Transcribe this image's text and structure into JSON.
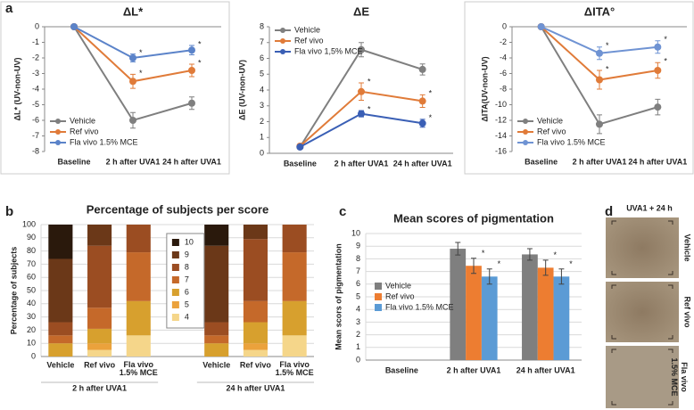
{
  "panel_labels": [
    "a",
    "b",
    "c",
    "d"
  ],
  "chart_data": [
    {
      "type": "line",
      "title": "ΔL*",
      "y_label": "ΔL* (UV-non-UV)",
      "categories": [
        "Baseline",
        "2 h after UVA1",
        "24 h after UVA1"
      ],
      "ylim": [
        -8,
        0
      ],
      "yticks": [
        0,
        -1,
        -2,
        -3,
        -4,
        -5,
        -6,
        -7,
        -8
      ],
      "legend": "lower left",
      "series": [
        {
          "name": "Vehicle",
          "color": "#7f7f7f",
          "values": [
            0,
            -6.0,
            -4.9
          ],
          "errors": [
            0,
            0.5,
            0.4
          ],
          "significance": [
            null,
            null,
            null
          ]
        },
        {
          "name": "Ref vivo",
          "color": "#e07b39",
          "values": [
            0,
            -3.5,
            -2.8
          ],
          "errors": [
            0,
            0.45,
            0.4
          ],
          "significance": [
            null,
            "*",
            "*"
          ]
        },
        {
          "name": "Fla vivo 1.5% MCE",
          "color": "#5b83c9",
          "values": [
            0,
            -2.0,
            -1.5
          ],
          "errors": [
            0,
            0.25,
            0.3
          ],
          "significance": [
            null,
            "*",
            "*"
          ]
        }
      ]
    },
    {
      "type": "line",
      "title": "ΔE",
      "y_label": "ΔE (UV-non-UV)",
      "categories": [
        "Baseline",
        "2 h after UVA1",
        "24 h after UVA1"
      ],
      "ylim": [
        0,
        8
      ],
      "yticks": [
        0,
        1,
        2,
        3,
        4,
        5,
        6,
        7,
        8
      ],
      "legend": "upper left",
      "series": [
        {
          "name": "Vehicle",
          "color": "#7f7f7f",
          "values": [
            0.4,
            6.55,
            5.3
          ],
          "errors": [
            0,
            0.45,
            0.35
          ],
          "significance": [
            null,
            null,
            null
          ]
        },
        {
          "name": "Ref vivo",
          "color": "#e07b39",
          "values": [
            0.45,
            3.9,
            3.3
          ],
          "errors": [
            0.1,
            0.55,
            0.4
          ],
          "significance": [
            null,
            "*",
            "*"
          ]
        },
        {
          "name": "Fla vivo 1,5% MCE",
          "color": "#3a5fb5",
          "values": [
            0.4,
            2.5,
            1.9
          ],
          "errors": [
            0.05,
            0.2,
            0.25
          ],
          "significance": [
            null,
            "*",
            "*"
          ]
        }
      ]
    },
    {
      "type": "line",
      "title": "ΔITA°",
      "y_label": "ΔITA(UV-non-UV)",
      "categories": [
        "Baseline",
        "2 h after UVA1",
        "24 h after UVA1"
      ],
      "ylim": [
        -16,
        0
      ],
      "yticks": [
        0,
        -2,
        -4,
        -6,
        -8,
        -10,
        -12,
        -14,
        -16
      ],
      "legend": "lower left",
      "series": [
        {
          "name": "Vehicle",
          "color": "#7f7f7f",
          "values": [
            0,
            -12.5,
            -10.3
          ],
          "errors": [
            0,
            1.2,
            1.0
          ],
          "significance": [
            null,
            null,
            null
          ]
        },
        {
          "name": "Ref vivo",
          "color": "#e07b39",
          "values": [
            0,
            -6.8,
            -5.6
          ],
          "errors": [
            0,
            1.2,
            1.0
          ],
          "significance": [
            null,
            "*",
            "*"
          ]
        },
        {
          "name": "Fla vivo 1.5% MCE",
          "color": "#6f93d3",
          "values": [
            0,
            -3.4,
            -2.6
          ],
          "errors": [
            0,
            0.8,
            0.8
          ],
          "significance": [
            null,
            "*",
            "*"
          ]
        }
      ]
    },
    {
      "type": "stacked_bar",
      "title": "Percentage of subjects per score",
      "y_label": "Percentage of subjects",
      "categories": [
        "Vehicle",
        "Ref vivo",
        "Fla vivo 1.5% MCE",
        "Vehicle",
        "Ref vivo",
        "Fla vivo 1.5% MCE"
      ],
      "groups": [
        "2 h after UVA1",
        "24 h after UVA1"
      ],
      "ylim": [
        0,
        100
      ],
      "yticks": [
        0,
        10,
        20,
        30,
        40,
        50,
        60,
        70,
        80,
        90,
        100
      ],
      "grid": true,
      "legend": "upper center",
      "series": [
        {
          "name": "4",
          "color": "#f5d68a",
          "values": [
            0,
            5,
            16,
            0,
            5,
            16
          ]
        },
        {
          "name": "5",
          "color": "#eba23c",
          "values": [
            0,
            5,
            0,
            0,
            5,
            0
          ]
        },
        {
          "name": "6",
          "color": "#d7a02e",
          "values": [
            10,
            11,
            26,
            10,
            16,
            26
          ]
        },
        {
          "name": "7",
          "color": "#c5692a",
          "values": [
            6,
            16,
            37,
            6,
            16,
            37
          ]
        },
        {
          "name": "8",
          "color": "#9b4d22",
          "values": [
            10,
            47,
            21,
            10,
            47,
            21
          ]
        },
        {
          "name": "9",
          "color": "#6b3818",
          "values": [
            48,
            16,
            0,
            58,
            11,
            0
          ]
        },
        {
          "name": "10",
          "color": "#2a190c",
          "values": [
            26,
            0,
            0,
            16,
            0,
            0
          ]
        }
      ]
    },
    {
      "type": "grouped_bar",
      "title": "Mean scores of pigmentation",
      "y_label": "Mean scors of pigmentation",
      "categories": [
        "Baseline",
        "2 h after UVA1",
        "24 h after UVA1"
      ],
      "ylim": [
        0,
        10
      ],
      "yticks": [
        0,
        1,
        2,
        3,
        4,
        5,
        6,
        7,
        8,
        9,
        10
      ],
      "grid": true,
      "legend": "center left",
      "series": [
        {
          "name": "Vehicle",
          "color": "#7f7f7f",
          "values": [
            null,
            8.8,
            8.35
          ],
          "errors": [
            null,
            0.5,
            0.45
          ],
          "significance": [
            null,
            null,
            null
          ]
        },
        {
          "name": "Ref vivo",
          "color": "#ed7d31",
          "values": [
            null,
            7.45,
            7.3
          ],
          "errors": [
            null,
            0.6,
            0.6
          ],
          "significance": [
            null,
            "*",
            "*"
          ]
        },
        {
          "name": "Fla vivo 1.5% MCE",
          "color": "#5b9bd5",
          "values": [
            null,
            6.6,
            6.6
          ],
          "errors": [
            null,
            0.6,
            0.6
          ],
          "significance": [
            null,
            "*",
            "*"
          ]
        }
      ]
    }
  ],
  "photos": {
    "title": "UVA1 + 24 h",
    "labels": [
      "Vehicle",
      "Ref vivo",
      "Fla vivo 1.5% MCE"
    ]
  }
}
